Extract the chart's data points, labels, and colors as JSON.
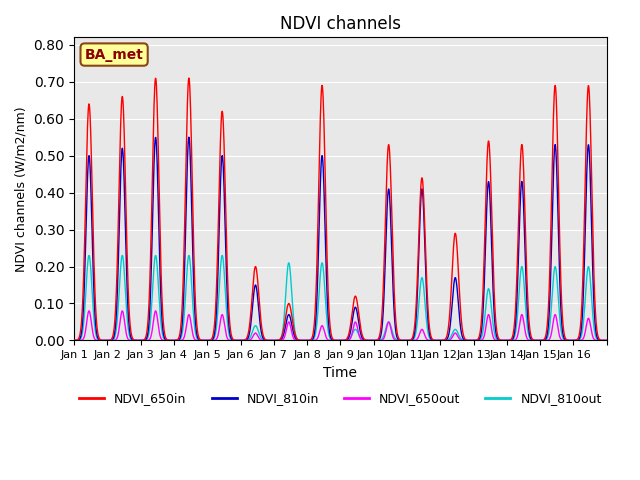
{
  "title": "NDVI channels",
  "xlabel": "Time",
  "ylabel": "NDVI channels (W/m2/nm)",
  "ylim": [
    0.0,
    0.82
  ],
  "yticks": [
    0.0,
    0.1,
    0.2,
    0.3,
    0.4,
    0.5,
    0.6,
    0.7,
    0.8
  ],
  "xtick_labels": [
    "Jan 1",
    "Jan 2",
    "Jan 3",
    "Jan 4",
    "Jan 5",
    "Jan 6",
    "Jan 7",
    "Jan 8",
    "Jan 9",
    "Jan 10",
    "Jan 11",
    "Jan 12",
    "Jan 13",
    "Jan 14",
    "Jan 15",
    "Jan 16"
  ],
  "annotation_text": "BA_met",
  "annotation_box_color": "#FFFF99",
  "annotation_box_edge": "#8B4513",
  "bg_color": "#E8E8E8",
  "colors": {
    "NDVI_650in": "#FF0000",
    "NDVI_810in": "#0000CC",
    "NDVI_650out": "#FF00FF",
    "NDVI_810out": "#00CCCC"
  },
  "legend_labels": [
    "NDVI_650in",
    "NDVI_810in",
    "NDVI_650out",
    "NDVI_810out"
  ],
  "n_points": 1500,
  "n_days": 16,
  "peaks": {
    "NDVI_650in": [
      0.64,
      0.66,
      0.71,
      0.71,
      0.62,
      0.2,
      0.1,
      0.69,
      0.12,
      0.53,
      0.44,
      0.29,
      0.54,
      0.53,
      0.69,
      0.69
    ],
    "NDVI_810in": [
      0.5,
      0.52,
      0.55,
      0.55,
      0.5,
      0.15,
      0.07,
      0.5,
      0.09,
      0.41,
      0.41,
      0.17,
      0.43,
      0.43,
      0.53,
      0.53
    ],
    "NDVI_650out": [
      0.08,
      0.08,
      0.08,
      0.07,
      0.07,
      0.02,
      0.05,
      0.04,
      0.05,
      0.05,
      0.03,
      0.02,
      0.07,
      0.07,
      0.07,
      0.06
    ],
    "NDVI_810out": [
      0.23,
      0.23,
      0.23,
      0.23,
      0.23,
      0.04,
      0.21,
      0.21,
      0.03,
      0.05,
      0.17,
      0.03,
      0.14,
      0.2,
      0.2,
      0.2
    ]
  }
}
